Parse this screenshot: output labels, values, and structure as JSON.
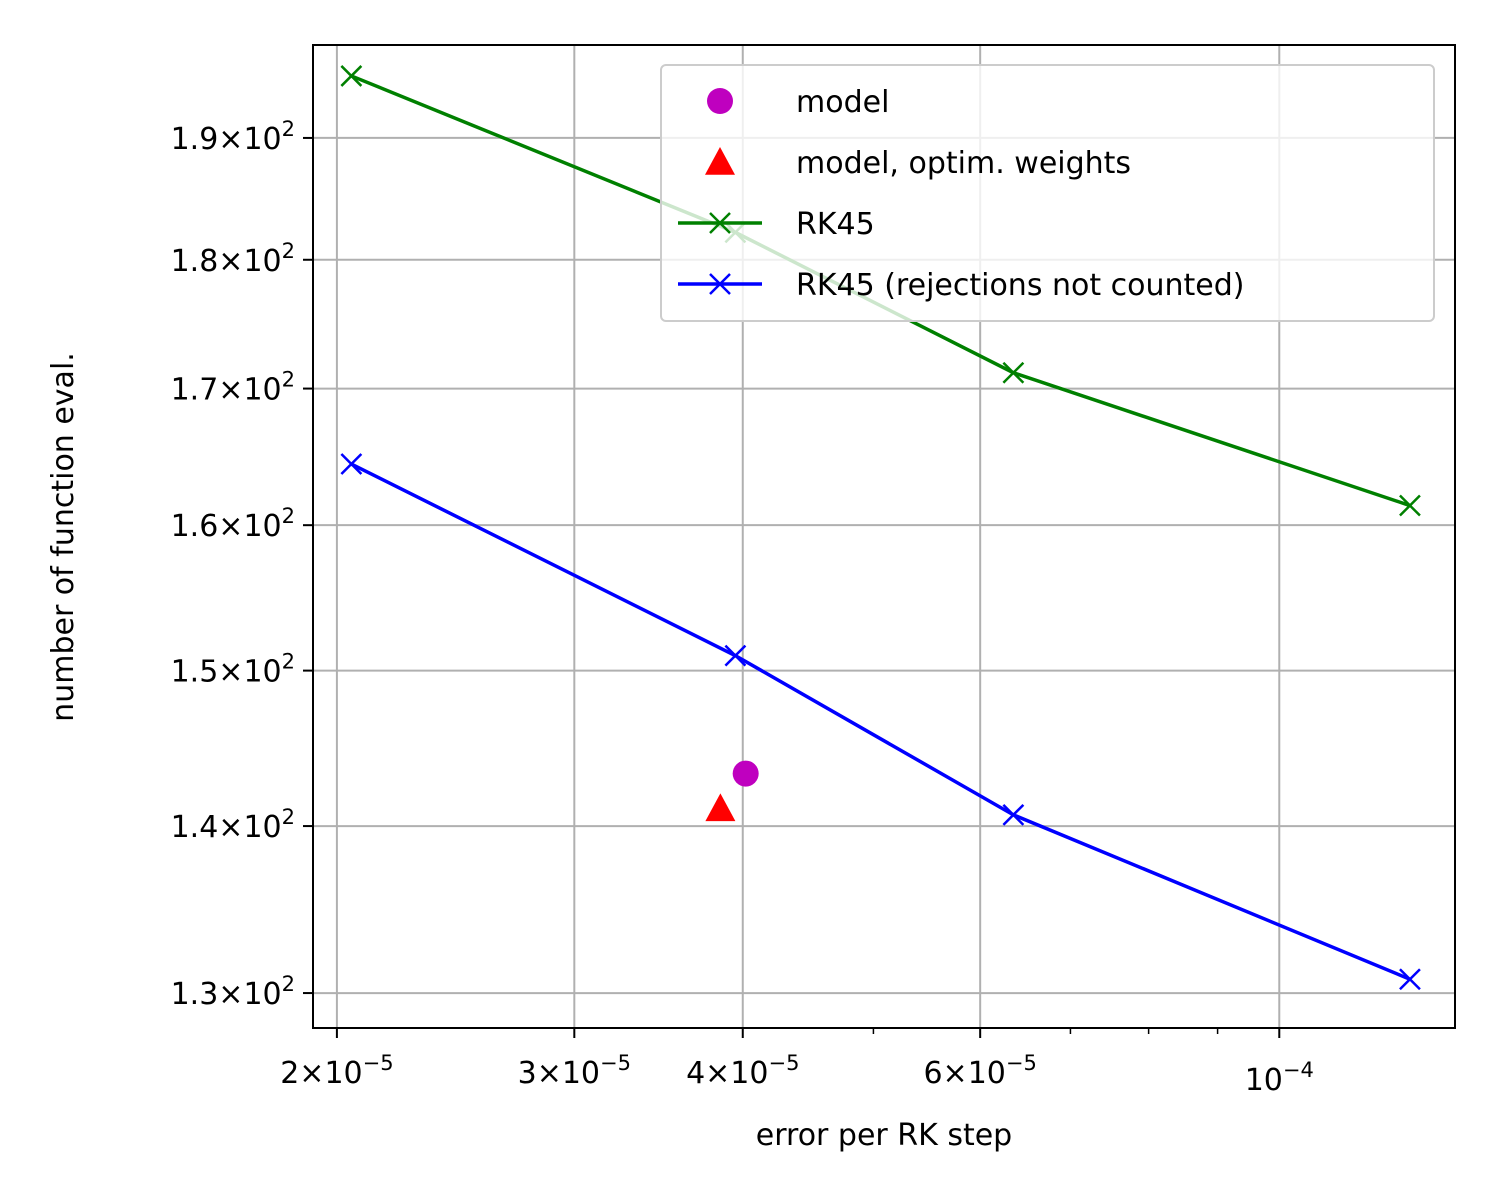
{
  "chart_data": {
    "type": "scatter",
    "title": "",
    "xlabel": "error per RK step",
    "ylabel": "number of function eval.",
    "xscale": "log",
    "yscale": "log",
    "xlim": [
      1.92e-05,
      0.000135
    ],
    "ylim": [
      128,
      198
    ],
    "grid": true,
    "legend_position": "top-right",
    "x_ticks": [
      {
        "value": 2e-05,
        "mantissa": "2",
        "exp": "−5"
      },
      {
        "value": 3e-05,
        "mantissa": "3",
        "exp": "−5"
      },
      {
        "value": 4e-05,
        "mantissa": "4",
        "exp": "−5"
      },
      {
        "value": 6e-05,
        "mantissa": "6",
        "exp": "−5"
      },
      {
        "value": 0.0001,
        "mantissa": "",
        "exp": "−4"
      }
    ],
    "x_minor_ticks": [
      5e-05,
      7e-05,
      8e-05,
      9e-05
    ],
    "y_ticks": [
      {
        "value": 130,
        "mantissa": "1.3",
        "exp": "2"
      },
      {
        "value": 140,
        "mantissa": "1.4",
        "exp": "2"
      },
      {
        "value": 150,
        "mantissa": "1.5",
        "exp": "2"
      },
      {
        "value": 160,
        "mantissa": "1.6",
        "exp": "2"
      },
      {
        "value": 170,
        "mantissa": "1.7",
        "exp": "2"
      },
      {
        "value": 180,
        "mantissa": "1.8",
        "exp": "2"
      },
      {
        "value": 190,
        "mantissa": "1.9",
        "exp": "2"
      }
    ],
    "series": [
      {
        "name": "model",
        "color": "#bf00bf",
        "marker": "circle",
        "line": false,
        "points": [
          {
            "x": 4.02e-05,
            "y": 143.3
          }
        ]
      },
      {
        "name": "model, optim. weights",
        "color": "#ff0000",
        "marker": "triangle",
        "line": false,
        "points": [
          {
            "x": 3.85e-05,
            "y": 141.1
          }
        ]
      },
      {
        "name": "RK45",
        "color": "#008000",
        "marker": "x",
        "line": true,
        "points": [
          {
            "x": 2.05e-05,
            "y": 195.3
          },
          {
            "x": 3.95e-05,
            "y": 182.2
          },
          {
            "x": 6.35e-05,
            "y": 171.2
          },
          {
            "x": 0.000125,
            "y": 161.4
          }
        ]
      },
      {
        "name": "RK45 (rejections not counted)",
        "color": "#0000ff",
        "marker": "x",
        "line": true,
        "points": [
          {
            "x": 2.05e-05,
            "y": 164.4
          },
          {
            "x": 3.95e-05,
            "y": 151.0
          },
          {
            "x": 6.35e-05,
            "y": 140.7
          },
          {
            "x": 0.000125,
            "y": 130.8
          }
        ]
      }
    ]
  }
}
